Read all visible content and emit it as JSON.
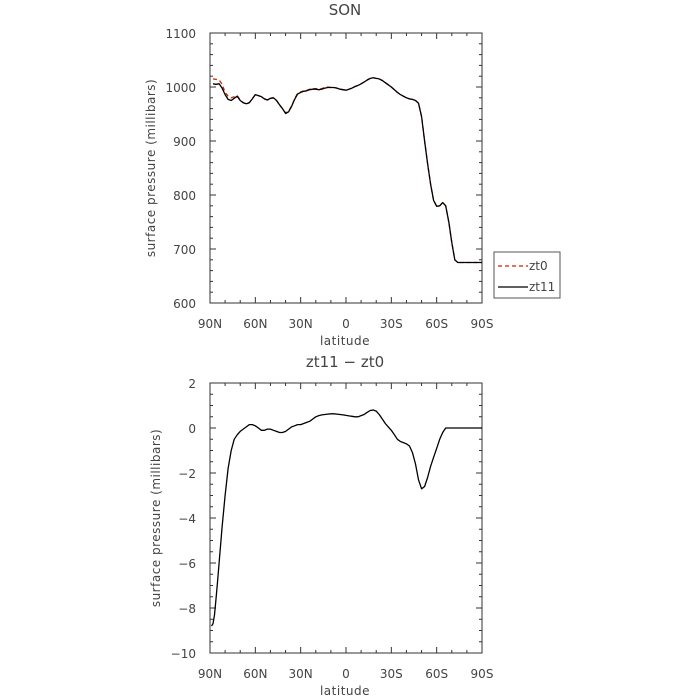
{
  "chart_data": [
    {
      "type": "line",
      "title": "SON",
      "xlabel": "latitude",
      "ylabel": "surface pressure (millibars)",
      "x_ticklabels": [
        "90N",
        "60N",
        "30N",
        "0",
        "30S",
        "60S",
        "90S"
      ],
      "y_ticklabels": [
        "600",
        "700",
        "800",
        "900",
        "1000",
        "1100"
      ],
      "xlim": [
        90,
        -90
      ],
      "ylim": [
        600,
        1100
      ],
      "x_ticks": [
        90,
        60,
        30,
        0,
        -30,
        -60,
        -90
      ],
      "y_ticks": [
        600,
        700,
        800,
        900,
        1000,
        1100
      ],
      "grid": false,
      "legend": "right",
      "series": [
        {
          "name": "zt0",
          "color": "#cc2200",
          "dash": "dashed",
          "x": [
            88,
            86,
            84,
            82,
            80,
            78,
            76,
            74,
            72,
            70,
            68,
            66,
            64,
            62,
            60,
            58,
            56,
            54,
            52,
            50,
            48,
            46,
            44,
            42,
            40,
            38,
            36,
            34,
            32,
            30,
            28,
            26,
            24,
            22,
            20,
            18,
            16,
            14,
            12,
            10,
            8,
            6,
            4,
            2,
            0,
            -2,
            -4,
            -6,
            -8,
            -10,
            -12,
            -14,
            -16,
            -18,
            -20,
            -22,
            -24,
            -26,
            -28,
            -30,
            -32,
            -34,
            -36,
            -38,
            -40,
            -42,
            -44,
            -46,
            -48,
            -50,
            -52,
            -54,
            -56,
            -58,
            -60,
            -62,
            -64,
            -66,
            -68,
            -70,
            -72,
            -74,
            -76,
            -78,
            -80,
            -82,
            -84,
            -86,
            -88,
            -90
          ],
          "values": [
            1015,
            1014,
            1013,
            1005,
            990,
            983,
            980,
            982,
            984,
            976,
            971,
            969,
            971,
            978,
            986,
            984,
            982,
            978,
            976,
            979,
            980,
            975,
            967,
            960,
            952,
            955,
            965,
            978,
            988,
            991,
            993,
            994,
            996,
            997,
            997,
            996,
            997,
            999,
            1000,
            999,
            999,
            998,
            996,
            995,
            994,
            996,
            998,
            1001,
            1003,
            1006,
            1009,
            1013,
            1016,
            1017,
            1016,
            1015,
            1012,
            1008,
            1004,
            1000,
            995,
            990,
            986,
            983,
            980,
            978,
            977,
            975,
            970,
            945,
            900,
            858,
            820,
            790,
            779,
            780,
            786,
            780,
            750,
            712,
            680,
            675,
            675,
            675,
            675,
            675,
            675,
            675,
            675,
            675
          ]
        },
        {
          "name": "zt11",
          "color": "#000000",
          "dash": "solid",
          "x": [
            88,
            86,
            84,
            82,
            80,
            78,
            76,
            74,
            72,
            70,
            68,
            66,
            64,
            62,
            60,
            58,
            56,
            54,
            52,
            50,
            48,
            46,
            44,
            42,
            40,
            38,
            36,
            34,
            32,
            30,
            28,
            26,
            24,
            22,
            20,
            18,
            16,
            14,
            12,
            10,
            8,
            6,
            4,
            2,
            0,
            -2,
            -4,
            -6,
            -8,
            -10,
            -12,
            -14,
            -16,
            -18,
            -20,
            -22,
            -24,
            -26,
            -28,
            -30,
            -32,
            -34,
            -36,
            -38,
            -40,
            -42,
            -44,
            -46,
            -48,
            -50,
            -52,
            -54,
            -56,
            -58,
            -60,
            -62,
            -64,
            -66,
            -68,
            -70,
            -72,
            -74,
            -76,
            -78,
            -80,
            -82,
            -84,
            -86,
            -88,
            -90
          ],
          "values": [
            1006,
            1005,
            1006,
            998,
            986,
            977,
            975,
            979,
            983,
            975,
            971,
            969,
            971,
            978,
            986,
            984,
            982,
            978,
            976,
            979,
            980,
            975,
            967,
            960,
            951,
            954,
            964,
            977,
            987,
            990,
            992,
            993,
            995,
            996,
            996,
            995,
            996,
            998,
            999,
            999,
            999,
            998,
            996,
            995,
            994,
            996,
            998,
            1001,
            1003,
            1006,
            1009,
            1013,
            1016,
            1017,
            1016,
            1015,
            1012,
            1008,
            1004,
            1000,
            995,
            990,
            986,
            983,
            980,
            978,
            977,
            975,
            970,
            945,
            900,
            858,
            820,
            790,
            779,
            780,
            786,
            780,
            750,
            712,
            680,
            675,
            675,
            675,
            675,
            675,
            675,
            675,
            675,
            675
          ]
        }
      ]
    },
    {
      "type": "line",
      "title": "zt11 − zt0",
      "xlabel": "latitude",
      "ylabel": "surface pressure (millibars)",
      "x_ticklabels": [
        "90N",
        "60N",
        "30N",
        "0",
        "30S",
        "60S",
        "90S"
      ],
      "y_ticklabels": [
        "−10",
        "−8",
        "−6",
        "−4",
        "−2",
        "0",
        "2"
      ],
      "xlim": [
        90,
        -90
      ],
      "ylim": [
        -10,
        2
      ],
      "x_ticks": [
        90,
        60,
        30,
        0,
        -30,
        -60,
        -90
      ],
      "y_ticks": [
        -10,
        -8,
        -6,
        -4,
        -2,
        0,
        2
      ],
      "grid": false,
      "series": [
        {
          "color": "#000000",
          "dash": "solid",
          "x": [
            89,
            88,
            87,
            86,
            85,
            84,
            82,
            80,
            78,
            76,
            74,
            72,
            70,
            68,
            66,
            64,
            62,
            60,
            58,
            56,
            54,
            52,
            50,
            48,
            46,
            44,
            42,
            40,
            38,
            36,
            34,
            32,
            30,
            28,
            26,
            24,
            22,
            20,
            18,
            16,
            14,
            12,
            10,
            8,
            6,
            4,
            2,
            0,
            -2,
            -4,
            -6,
            -8,
            -10,
            -12,
            -14,
            -16,
            -18,
            -20,
            -22,
            -24,
            -26,
            -28,
            -30,
            -32,
            -34,
            -36,
            -38,
            -40,
            -42,
            -44,
            -46,
            -48,
            -50,
            -52,
            -54,
            -56,
            -58,
            -60,
            -62,
            -64,
            -66,
            -68,
            -70,
            -72,
            -74,
            -76,
            -78,
            -80,
            -82,
            -84,
            -86,
            -88,
            -90
          ],
          "values": [
            -8.8,
            -8.7,
            -8.3,
            -7.6,
            -6.8,
            -6.0,
            -4.4,
            -3.0,
            -1.8,
            -1.0,
            -0.5,
            -0.3,
            -0.15,
            -0.05,
            0.05,
            0.15,
            0.15,
            0.1,
            0.0,
            -0.1,
            -0.1,
            -0.05,
            -0.05,
            -0.1,
            -0.15,
            -0.2,
            -0.2,
            -0.15,
            -0.05,
            0.05,
            0.1,
            0.15,
            0.15,
            0.2,
            0.25,
            0.3,
            0.4,
            0.5,
            0.55,
            0.58,
            0.6,
            0.62,
            0.63,
            0.63,
            0.62,
            0.6,
            0.58,
            0.56,
            0.54,
            0.52,
            0.5,
            0.5,
            0.55,
            0.6,
            0.7,
            0.78,
            0.8,
            0.75,
            0.6,
            0.4,
            0.2,
            0.05,
            -0.1,
            -0.3,
            -0.5,
            -0.6,
            -0.65,
            -0.7,
            -0.8,
            -1.1,
            -1.6,
            -2.3,
            -2.7,
            -2.6,
            -2.2,
            -1.7,
            -1.3,
            -0.9,
            -0.5,
            -0.2,
            0.0,
            0.0,
            0.0,
            0.0,
            0.0,
            0.0,
            0.0,
            0.0,
            0.0,
            0.0,
            0.0,
            0.0,
            0.0
          ]
        }
      ]
    }
  ]
}
